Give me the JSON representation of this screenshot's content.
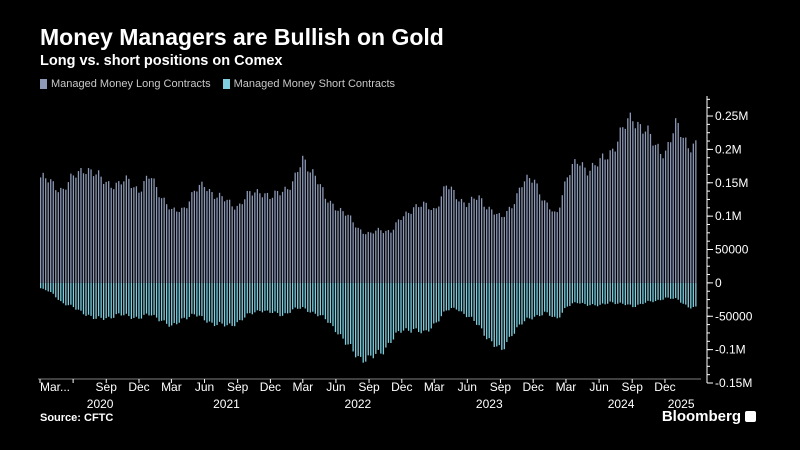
{
  "header": {
    "title": "Money Managers are Bullish on Gold",
    "subtitle": "Long vs. short positions on Comex"
  },
  "footer": {
    "source": "Source: CFTC",
    "brand": "Bloomberg"
  },
  "colors": {
    "background": "#000000",
    "long": "#8c9ab8",
    "short": "#7fcfe0",
    "axis": "#ffffff",
    "text": "#ffffff"
  },
  "chart_data": {
    "type": "bar",
    "stacked_diverging": true,
    "title": "Money Managers are Bullish on Gold",
    "subtitle": "Long vs. short positions on Comex",
    "legend_placement": "top-left",
    "grid": false,
    "y_axis_side": "right",
    "ylim": [
      -150000,
      280000
    ],
    "yticks": [
      {
        "value": 250000,
        "label": "0.25M"
      },
      {
        "value": 200000,
        "label": "0.2M"
      },
      {
        "value": 150000,
        "label": "0.15M"
      },
      {
        "value": 100000,
        "label": "0.1M"
      },
      {
        "value": 50000,
        "label": "50000"
      },
      {
        "value": 0,
        "label": "0"
      },
      {
        "value": -50000,
        "label": "-50000"
      },
      {
        "value": -100000,
        "label": "-0.1M"
      },
      {
        "value": -150000,
        "label": "-0.15M"
      }
    ],
    "x_range": [
      "2020-03-01",
      "2025-02-28"
    ],
    "month_ticks": [
      {
        "date": "2020-03-01",
        "label": "Mar..."
      },
      {
        "date": "2020-06-01",
        "label": ""
      },
      {
        "date": "2020-09-01",
        "label": "Sep"
      },
      {
        "date": "2020-12-01",
        "label": "Dec"
      },
      {
        "date": "2021-03-01",
        "label": "Mar"
      },
      {
        "date": "2021-06-01",
        "label": "Jun"
      },
      {
        "date": "2021-09-01",
        "label": "Sep"
      },
      {
        "date": "2021-12-01",
        "label": "Dec"
      },
      {
        "date": "2022-03-01",
        "label": "Mar"
      },
      {
        "date": "2022-06-01",
        "label": "Jun"
      },
      {
        "date": "2022-09-01",
        "label": "Sep"
      },
      {
        "date": "2022-12-01",
        "label": "Dec"
      },
      {
        "date": "2023-03-01",
        "label": "Mar"
      },
      {
        "date": "2023-06-01",
        "label": "Jun"
      },
      {
        "date": "2023-09-01",
        "label": "Sep"
      },
      {
        "date": "2023-12-01",
        "label": "Dec"
      },
      {
        "date": "2024-03-01",
        "label": "Mar"
      },
      {
        "date": "2024-06-01",
        "label": "Jun"
      },
      {
        "date": "2024-09-01",
        "label": "Sep"
      },
      {
        "date": "2024-12-01",
        "label": "Dec"
      }
    ],
    "year_labels": [
      {
        "date": "2020-08-15",
        "label": "2020"
      },
      {
        "date": "2021-08-01",
        "label": "2021"
      },
      {
        "date": "2022-08-01",
        "label": "2022"
      },
      {
        "date": "2023-08-01",
        "label": "2023"
      },
      {
        "date": "2024-08-01",
        "label": "2024"
      },
      {
        "date": "2025-01-15",
        "label": "2025"
      }
    ],
    "series": [
      {
        "name": "Managed Money Long Contracts",
        "color": "#8c9ab8",
        "points": [
          [
            "2020-03-01",
            158000
          ],
          [
            "2020-05-01",
            140000
          ],
          [
            "2020-07-01",
            175000
          ],
          [
            "2020-08-01",
            160000
          ],
          [
            "2020-10-01",
            145000
          ],
          [
            "2020-11-01",
            155000
          ],
          [
            "2020-12-01",
            138000
          ],
          [
            "2021-01-01",
            160000
          ],
          [
            "2021-02-01",
            130000
          ],
          [
            "2021-03-01",
            105000
          ],
          [
            "2021-04-01",
            112000
          ],
          [
            "2021-05-01",
            135000
          ],
          [
            "2021-06-01",
            148000
          ],
          [
            "2021-07-01",
            130000
          ],
          [
            "2021-08-01",
            122000
          ],
          [
            "2021-09-01",
            115000
          ],
          [
            "2021-10-01",
            132000
          ],
          [
            "2021-11-01",
            140000
          ],
          [
            "2021-12-01",
            125000
          ],
          [
            "2022-01-01",
            140000
          ],
          [
            "2022-02-01",
            150000
          ],
          [
            "2022-03-01",
            185000
          ],
          [
            "2022-04-01",
            165000
          ],
          [
            "2022-05-01",
            125000
          ],
          [
            "2022-06-01",
            115000
          ],
          [
            "2022-07-01",
            100000
          ],
          [
            "2022-08-01",
            82000
          ],
          [
            "2022-09-01",
            72000
          ],
          [
            "2022-10-01",
            80000
          ],
          [
            "2022-11-01",
            78000
          ],
          [
            "2022-12-01",
            98000
          ],
          [
            "2023-01-01",
            115000
          ],
          [
            "2023-02-01",
            115000
          ],
          [
            "2023-03-01",
            110000
          ],
          [
            "2023-04-01",
            145000
          ],
          [
            "2023-05-01",
            130000
          ],
          [
            "2023-06-01",
            118000
          ],
          [
            "2023-07-01",
            128000
          ],
          [
            "2023-08-01",
            112000
          ],
          [
            "2023-09-01",
            95000
          ],
          [
            "2023-10-01",
            118000
          ],
          [
            "2023-11-01",
            148000
          ],
          [
            "2023-12-01",
            160000
          ],
          [
            "2024-01-01",
            118000
          ],
          [
            "2024-02-01",
            100000
          ],
          [
            "2024-03-01",
            160000
          ],
          [
            "2024-04-01",
            180000
          ],
          [
            "2024-05-01",
            172000
          ],
          [
            "2024-06-01",
            178000
          ],
          [
            "2024-07-01",
            198000
          ],
          [
            "2024-08-01",
            225000
          ],
          [
            "2024-09-01",
            250000
          ],
          [
            "2024-10-01",
            232000
          ],
          [
            "2024-11-01",
            205000
          ],
          [
            "2024-12-01",
            198000
          ],
          [
            "2025-01-01",
            235000
          ],
          [
            "2025-02-01",
            210000
          ],
          [
            "2025-02-28",
            203000
          ]
        ]
      },
      {
        "name": "Managed Money Short Contracts",
        "color": "#7fcfe0",
        "points": [
          [
            "2020-03-01",
            -8000
          ],
          [
            "2020-04-01",
            -15000
          ],
          [
            "2020-05-01",
            -30000
          ],
          [
            "2020-07-01",
            -45000
          ],
          [
            "2020-08-01",
            -55000
          ],
          [
            "2020-09-01",
            -52000
          ],
          [
            "2020-10-01",
            -48000
          ],
          [
            "2020-12-01",
            -52000
          ],
          [
            "2021-01-01",
            -48000
          ],
          [
            "2021-02-01",
            -55000
          ],
          [
            "2021-03-01",
            -68000
          ],
          [
            "2021-04-01",
            -52000
          ],
          [
            "2021-05-01",
            -48000
          ],
          [
            "2021-06-01",
            -55000
          ],
          [
            "2021-07-01",
            -62000
          ],
          [
            "2021-08-01",
            -65000
          ],
          [
            "2021-09-01",
            -58000
          ],
          [
            "2021-10-01",
            -48000
          ],
          [
            "2021-11-01",
            -40000
          ],
          [
            "2021-12-01",
            -45000
          ],
          [
            "2022-01-01",
            -48000
          ],
          [
            "2022-02-01",
            -40000
          ],
          [
            "2022-03-01",
            -38000
          ],
          [
            "2022-04-01",
            -45000
          ],
          [
            "2022-05-01",
            -55000
          ],
          [
            "2022-06-01",
            -70000
          ],
          [
            "2022-07-01",
            -95000
          ],
          [
            "2022-08-01",
            -110000
          ],
          [
            "2022-09-01",
            -115000
          ],
          [
            "2022-10-01",
            -105000
          ],
          [
            "2022-11-01",
            -85000
          ],
          [
            "2022-12-01",
            -72000
          ],
          [
            "2023-01-01",
            -68000
          ],
          [
            "2023-02-01",
            -78000
          ],
          [
            "2023-03-01",
            -60000
          ],
          [
            "2023-04-01",
            -42000
          ],
          [
            "2023-05-01",
            -38000
          ],
          [
            "2023-06-01",
            -50000
          ],
          [
            "2023-07-01",
            -65000
          ],
          [
            "2023-08-01",
            -85000
          ],
          [
            "2023-09-01",
            -105000
          ],
          [
            "2023-10-01",
            -75000
          ],
          [
            "2023-11-01",
            -60000
          ],
          [
            "2023-12-01",
            -50000
          ],
          [
            "2024-01-01",
            -45000
          ],
          [
            "2024-02-01",
            -55000
          ],
          [
            "2024-03-01",
            -35000
          ],
          [
            "2024-04-01",
            -30000
          ],
          [
            "2024-05-01",
            -32000
          ],
          [
            "2024-06-01",
            -35000
          ],
          [
            "2024-07-01",
            -28000
          ],
          [
            "2024-08-01",
            -32000
          ],
          [
            "2024-09-01",
            -35000
          ],
          [
            "2024-10-01",
            -30000
          ],
          [
            "2024-11-01",
            -28000
          ],
          [
            "2024-12-01",
            -22000
          ],
          [
            "2025-01-01",
            -25000
          ],
          [
            "2025-02-01",
            -35000
          ],
          [
            "2025-02-28",
            -38000
          ]
        ]
      }
    ]
  }
}
